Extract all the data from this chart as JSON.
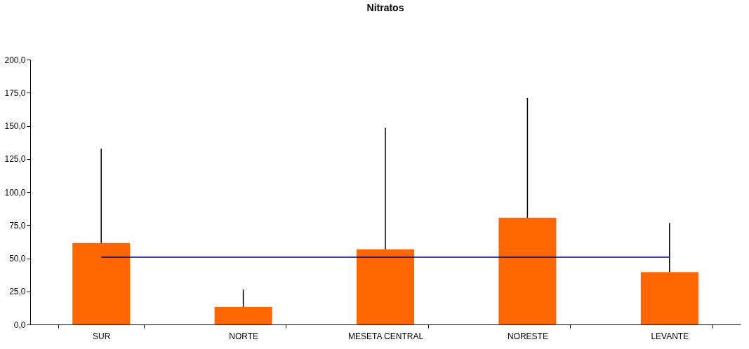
{
  "chart_data": {
    "type": "bar",
    "title": "Nitratos",
    "categories": [
      "SUR",
      "NORTE",
      "MESETA CENTRAL",
      "NORESTE",
      "LEVANTE"
    ],
    "series": [
      {
        "color": "#ff6600",
        "values": [
          61.5,
          13.2,
          56.8,
          80.5,
          39.6
        ],
        "errors": [
          [
            61.5,
            132.7
          ],
          [
            13.2,
            26.4
          ],
          [
            56.8,
            148.5
          ],
          [
            80.5,
            171.0
          ],
          [
            39.6,
            76.6
          ]
        ]
      },
      {
        "type": "line",
        "color": "#000080",
        "values": [
          50.8,
          50.8,
          50.8,
          50.8,
          50.8
        ],
        "marker": "none"
      }
    ],
    "ylim": [
      0,
      200
    ],
    "yticks": [
      {
        "value": 0,
        "label": "0,0"
      },
      {
        "value": 25,
        "label": "25,0"
      },
      {
        "value": 50,
        "label": "50,0"
      },
      {
        "value": 75,
        "label": "75,0"
      },
      {
        "value": 100,
        "label": "100,0"
      },
      {
        "value": 125,
        "label": "125,0"
      },
      {
        "value": 150,
        "label": "150,0"
      },
      {
        "value": 175,
        "label": "175,0"
      },
      {
        "value": 200,
        "label": "200,0"
      }
    ],
    "grid": false
  }
}
